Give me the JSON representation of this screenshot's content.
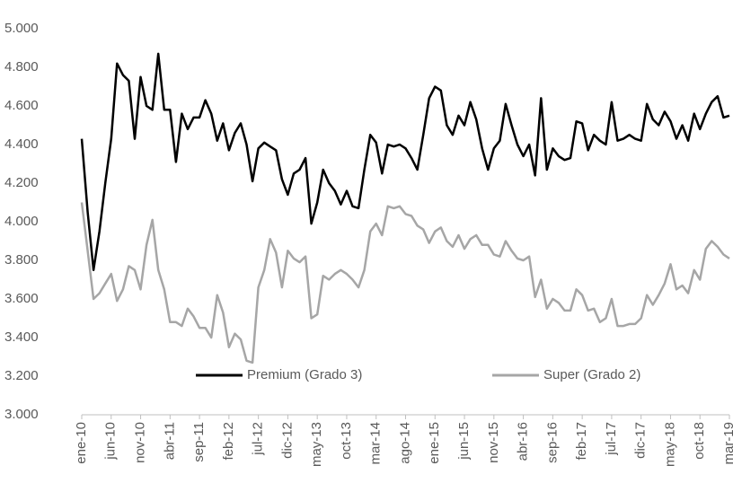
{
  "chart_data": {
    "type": "line",
    "categories": [
      "ene-10",
      null,
      null,
      null,
      null,
      "jun-10",
      null,
      null,
      null,
      null,
      "nov-10",
      null,
      null,
      null,
      null,
      "abr-11",
      null,
      null,
      null,
      null,
      "sep-11",
      null,
      null,
      null,
      null,
      "feb-12",
      null,
      null,
      null,
      null,
      "jul-12",
      null,
      null,
      null,
      null,
      "dic-12",
      null,
      null,
      null,
      null,
      "may-13",
      null,
      null,
      null,
      null,
      "oct-13",
      null,
      null,
      null,
      null,
      "mar-14",
      null,
      null,
      null,
      null,
      "ago-14",
      null,
      null,
      null,
      null,
      "ene-15",
      null,
      null,
      null,
      null,
      "jun-15",
      null,
      null,
      null,
      null,
      "nov-15",
      null,
      null,
      null,
      null,
      "abr-16",
      null,
      null,
      null,
      null,
      "sep-16",
      null,
      null,
      null,
      null,
      "feb-17",
      null,
      null,
      null,
      null,
      "jul-17",
      null,
      null,
      null,
      null,
      "dic-17",
      null,
      null,
      null,
      null,
      "may-18",
      null,
      null,
      null,
      null,
      "oct-18",
      null,
      null,
      null,
      null,
      "mar-19"
    ],
    "series": [
      {
        "name": "Premium (Grado 3)",
        "color": "#000000",
        "values": [
          4.43,
          4.05,
          3.75,
          3.95,
          4.2,
          4.43,
          4.82,
          4.76,
          4.73,
          4.43,
          4.75,
          4.6,
          4.58,
          4.87,
          4.58,
          4.58,
          4.31,
          4.56,
          4.48,
          4.54,
          4.54,
          4.63,
          4.56,
          4.42,
          4.51,
          4.37,
          4.46,
          4.51,
          4.4,
          4.21,
          4.38,
          4.41,
          4.39,
          4.37,
          4.22,
          4.14,
          4.25,
          4.27,
          4.33,
          3.99,
          4.1,
          4.27,
          4.2,
          4.16,
          4.09,
          4.16,
          4.08,
          4.07,
          4.27,
          4.45,
          4.41,
          4.25,
          4.4,
          4.39,
          4.4,
          4.38,
          4.33,
          4.27,
          4.45,
          4.64,
          4.7,
          4.68,
          4.5,
          4.45,
          4.55,
          4.5,
          4.62,
          4.53,
          4.38,
          4.27,
          4.38,
          4.42,
          4.61,
          4.5,
          4.4,
          4.34,
          4.4,
          4.24,
          4.64,
          4.27,
          4.38,
          4.34,
          4.32,
          4.33,
          4.52,
          4.51,
          4.37,
          4.45,
          4.42,
          4.4,
          4.62,
          4.42,
          4.43,
          4.45,
          4.43,
          4.42,
          4.61,
          4.53,
          4.5,
          4.57,
          4.52,
          4.43,
          4.5,
          4.42,
          4.56,
          4.48,
          4.56,
          4.62,
          4.65,
          4.54,
          4.55
        ]
      },
      {
        "name": "Super (Grado 2)",
        "color": "#a6a6a6",
        "values": [
          4.1,
          3.85,
          3.6,
          3.63,
          3.68,
          3.73,
          3.59,
          3.65,
          3.77,
          3.75,
          3.65,
          3.88,
          4.01,
          3.75,
          3.65,
          3.48,
          3.48,
          3.46,
          3.55,
          3.51,
          3.45,
          3.45,
          3.4,
          3.62,
          3.53,
          3.35,
          3.42,
          3.39,
          3.28,
          3.27,
          3.66,
          3.75,
          3.91,
          3.84,
          3.66,
          3.85,
          3.81,
          3.79,
          3.82,
          3.5,
          3.52,
          3.72,
          3.7,
          3.73,
          3.75,
          3.73,
          3.7,
          3.66,
          3.75,
          3.95,
          3.99,
          3.93,
          4.08,
          4.07,
          4.08,
          4.04,
          4.03,
          3.98,
          3.96,
          3.89,
          3.95,
          3.97,
          3.9,
          3.87,
          3.93,
          3.86,
          3.91,
          3.93,
          3.88,
          3.88,
          3.83,
          3.82,
          3.9,
          3.85,
          3.81,
          3.8,
          3.82,
          3.61,
          3.7,
          3.55,
          3.6,
          3.58,
          3.54,
          3.54,
          3.65,
          3.62,
          3.54,
          3.55,
          3.48,
          3.5,
          3.6,
          3.46,
          3.46,
          3.47,
          3.47,
          3.5,
          3.62,
          3.57,
          3.62,
          3.68,
          3.78,
          3.65,
          3.67,
          3.63,
          3.75,
          3.7,
          3.86,
          3.9,
          3.87,
          3.83,
          3.81
        ]
      }
    ],
    "ylim": [
      3,
      5
    ],
    "yticks": [
      {
        "value": 3,
        "label": "3.000"
      },
      {
        "value": 3.2,
        "label": "3.200"
      },
      {
        "value": 3.4,
        "label": "3.400"
      },
      {
        "value": 3.6,
        "label": "3.600"
      },
      {
        "value": 3.8,
        "label": "3.800"
      },
      {
        "value": 4,
        "label": "4.000"
      },
      {
        "value": 4.2,
        "label": "4.200"
      },
      {
        "value": 4.4,
        "label": "4.400"
      },
      {
        "value": 4.6,
        "label": "4.600"
      },
      {
        "value": 4.8,
        "label": "4.800"
      },
      {
        "value": 5,
        "label": "5.000"
      }
    ],
    "grid": false,
    "legend": "bottom"
  }
}
